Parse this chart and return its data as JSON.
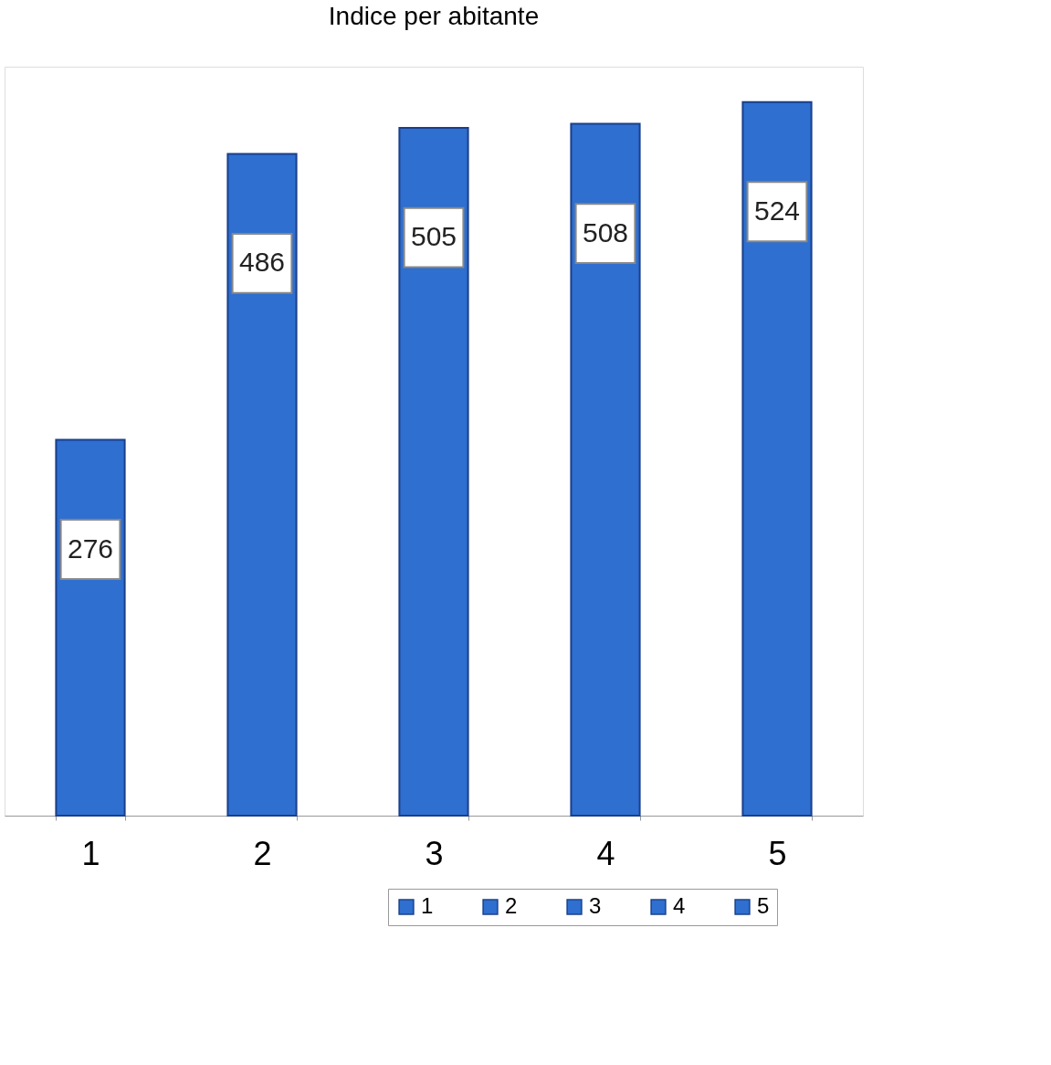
{
  "chart_data": {
    "type": "bar",
    "title": "Indice per abitante",
    "categories": [
      "1",
      "2",
      "3",
      "4",
      "5"
    ],
    "series": [
      {
        "name": "1",
        "color": "#2e6fd0",
        "values": [
          276,
          null,
          null,
          null,
          null
        ]
      },
      {
        "name": "2",
        "color": "#2e6fd0",
        "values": [
          null,
          486,
          null,
          null,
          null
        ]
      },
      {
        "name": "3",
        "color": "#2e6fd0",
        "values": [
          null,
          null,
          505,
          null,
          null
        ]
      },
      {
        "name": "4",
        "color": "#2e6fd0",
        "values": [
          null,
          null,
          null,
          508,
          null
        ]
      },
      {
        "name": "5",
        "color": "#2e6fd0",
        "values": [
          null,
          null,
          null,
          null,
          524
        ]
      }
    ],
    "data_labels": true,
    "tick_labels": "x",
    "grid": false,
    "legend": "bottom right"
  }
}
